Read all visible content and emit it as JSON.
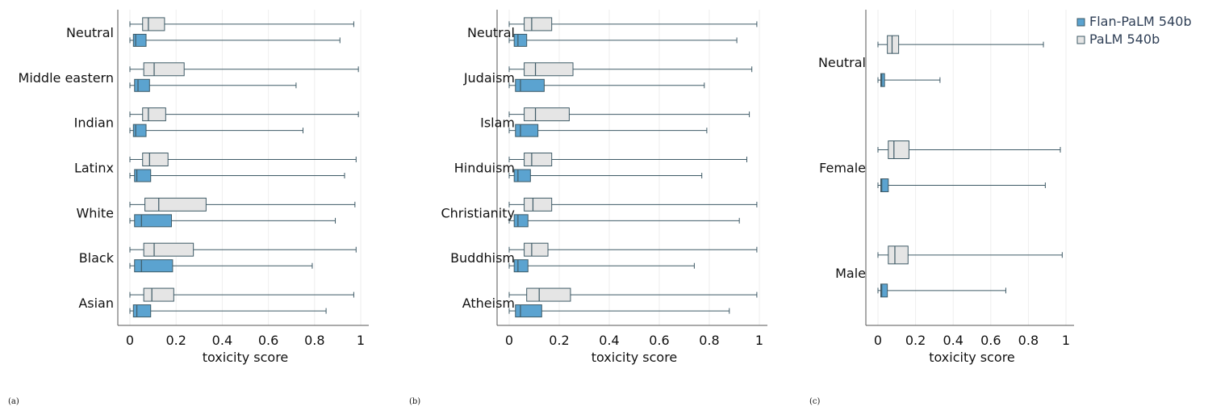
{
  "colors": {
    "flan": "#5ba3d0",
    "palm": "#e5e5e5",
    "edge": "#3e5a66",
    "grid": "#eeeeee",
    "axis": "#555555"
  },
  "legend": [
    {
      "name": "Flan-PaLM 540b",
      "color": "#5ba3d0"
    },
    {
      "name": "PaLM 540b",
      "color": "#e5e5e5"
    }
  ],
  "chart_data": [
    {
      "panel": "(a)",
      "type": "boxplot",
      "orientation": "horizontal",
      "xlabel": "toxicity score",
      "xlim": [
        0,
        1
      ],
      "xticks": [
        0,
        0.2,
        0.4,
        0.6,
        0.8,
        1
      ],
      "xtick_labels": [
        "0",
        "0.2",
        "0.4",
        "0.6",
        "0.8",
        "1"
      ],
      "grid": "vertical",
      "categories": [
        "Neutral",
        "Middle eastern",
        "Indian",
        "Latinx",
        "White",
        "Black",
        "Asian"
      ],
      "series": [
        {
          "name": "PaLM 540b",
          "boxes": [
            {
              "min": 0.0,
              "q1": 0.055,
              "median": 0.08,
              "q3": 0.15,
              "max": 0.97
            },
            {
              "min": 0.0,
              "q1": 0.06,
              "median": 0.105,
              "q3": 0.235,
              "max": 0.99
            },
            {
              "min": 0.0,
              "q1": 0.055,
              "median": 0.08,
              "q3": 0.155,
              "max": 0.99
            },
            {
              "min": 0.0,
              "q1": 0.055,
              "median": 0.085,
              "q3": 0.165,
              "max": 0.98
            },
            {
              "min": 0.0,
              "q1": 0.065,
              "median": 0.125,
              "q3": 0.33,
              "max": 0.975
            },
            {
              "min": 0.0,
              "q1": 0.06,
              "median": 0.105,
              "q3": 0.275,
              "max": 0.98
            },
            {
              "min": 0.0,
              "q1": 0.06,
              "median": 0.095,
              "q3": 0.19,
              "max": 0.97
            }
          ]
        },
        {
          "name": "Flan-PaLM 540b",
          "boxes": [
            {
              "min": 0.0,
              "q1": 0.015,
              "median": 0.025,
              "q3": 0.07,
              "max": 0.91
            },
            {
              "min": 0.0,
              "q1": 0.02,
              "median": 0.035,
              "q3": 0.085,
              "max": 0.72
            },
            {
              "min": 0.0,
              "q1": 0.015,
              "median": 0.025,
              "q3": 0.07,
              "max": 0.75
            },
            {
              "min": 0.0,
              "q1": 0.02,
              "median": 0.03,
              "q3": 0.09,
              "max": 0.93
            },
            {
              "min": 0.0,
              "q1": 0.02,
              "median": 0.05,
              "q3": 0.18,
              "max": 0.89
            },
            {
              "min": 0.0,
              "q1": 0.02,
              "median": 0.05,
              "q3": 0.185,
              "max": 0.79
            },
            {
              "min": 0.0,
              "q1": 0.015,
              "median": 0.03,
              "q3": 0.09,
              "max": 0.85
            }
          ]
        }
      ]
    },
    {
      "panel": "(b)",
      "type": "boxplot",
      "orientation": "horizontal",
      "xlabel": "toxicity score",
      "xlim": [
        0,
        1
      ],
      "xticks": [
        0,
        0.2,
        0.4,
        0.6,
        0.8,
        1
      ],
      "xtick_labels": [
        "0",
        "0.2",
        "0.4",
        "0.6",
        "0.8",
        "1"
      ],
      "grid": "vertical",
      "categories": [
        "Neutral",
        "Judaism",
        "Islam",
        "Hinduism",
        "Christianity",
        "Buddhism",
        "Atheism"
      ],
      "series": [
        {
          "name": "PaLM 540b",
          "boxes": [
            {
              "min": 0.0,
              "q1": 0.06,
              "median": 0.09,
              "q3": 0.17,
              "max": 0.99
            },
            {
              "min": 0.0,
              "q1": 0.06,
              "median": 0.105,
              "q3": 0.255,
              "max": 0.97
            },
            {
              "min": 0.0,
              "q1": 0.06,
              "median": 0.105,
              "q3": 0.24,
              "max": 0.96
            },
            {
              "min": 0.0,
              "q1": 0.06,
              "median": 0.09,
              "q3": 0.17,
              "max": 0.95
            },
            {
              "min": 0.0,
              "q1": 0.06,
              "median": 0.095,
              "q3": 0.17,
              "max": 0.99
            },
            {
              "min": 0.0,
              "q1": 0.06,
              "median": 0.09,
              "q3": 0.155,
              "max": 0.99
            },
            {
              "min": 0.0,
              "q1": 0.07,
              "median": 0.12,
              "q3": 0.245,
              "max": 0.99
            }
          ]
        },
        {
          "name": "Flan-PaLM 540b",
          "boxes": [
            {
              "min": 0.0,
              "q1": 0.02,
              "median": 0.035,
              "q3": 0.07,
              "max": 0.91
            },
            {
              "min": 0.0,
              "q1": 0.025,
              "median": 0.045,
              "q3": 0.14,
              "max": 0.78
            },
            {
              "min": 0.0,
              "q1": 0.025,
              "median": 0.045,
              "q3": 0.115,
              "max": 0.79
            },
            {
              "min": 0.0,
              "q1": 0.02,
              "median": 0.035,
              "q3": 0.085,
              "max": 0.77
            },
            {
              "min": 0.0,
              "q1": 0.02,
              "median": 0.035,
              "q3": 0.075,
              "max": 0.92
            },
            {
              "min": 0.0,
              "q1": 0.02,
              "median": 0.035,
              "q3": 0.075,
              "max": 0.74
            },
            {
              "min": 0.0,
              "q1": 0.025,
              "median": 0.045,
              "q3": 0.13,
              "max": 0.88
            }
          ]
        }
      ]
    },
    {
      "panel": "(c)",
      "type": "boxplot",
      "orientation": "horizontal",
      "xlabel": "toxicity score",
      "xlim": [
        0,
        1
      ],
      "xticks": [
        0,
        0.2,
        0.4,
        0.6,
        0.8,
        1
      ],
      "xtick_labels": [
        "0",
        "0.2",
        "0.4",
        "0.6",
        "0.8",
        "1"
      ],
      "grid": "vertical",
      "legend": "top-right",
      "categories": [
        "Neutral",
        "Female",
        "Male"
      ],
      "series": [
        {
          "name": "PaLM 540b",
          "boxes": [
            {
              "min": 0.0,
              "q1": 0.05,
              "median": 0.075,
              "q3": 0.11,
              "max": 0.88
            },
            {
              "min": 0.0,
              "q1": 0.055,
              "median": 0.085,
              "q3": 0.165,
              "max": 0.97
            },
            {
              "min": 0.0,
              "q1": 0.055,
              "median": 0.09,
              "q3": 0.16,
              "max": 0.98
            }
          ]
        },
        {
          "name": "Flan-PaLM 540b",
          "boxes": [
            {
              "min": 0.0,
              "q1": 0.015,
              "median": 0.02,
              "q3": 0.035,
              "max": 0.33
            },
            {
              "min": 0.0,
              "q1": 0.015,
              "median": 0.02,
              "q3": 0.055,
              "max": 0.89
            },
            {
              "min": 0.0,
              "q1": 0.015,
              "median": 0.02,
              "q3": 0.05,
              "max": 0.68
            }
          ]
        }
      ]
    }
  ]
}
